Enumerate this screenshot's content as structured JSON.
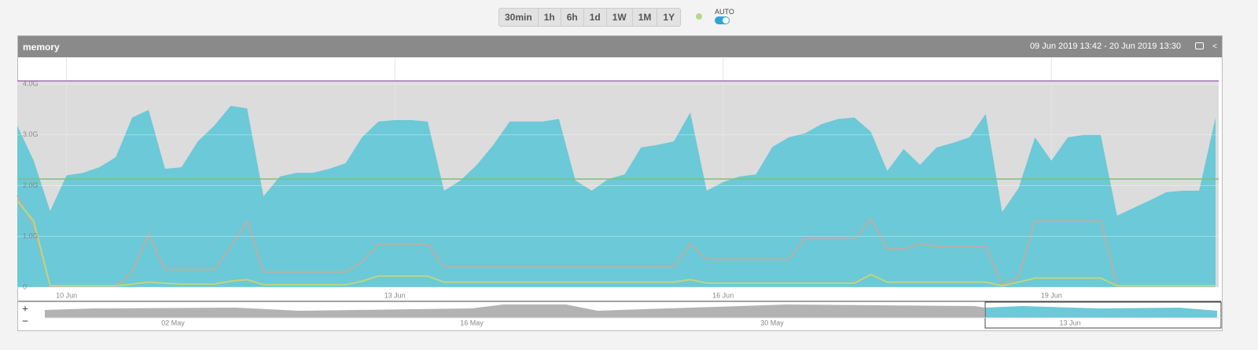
{
  "toolbar": {
    "buttons": [
      "30min",
      "1h",
      "6h",
      "1d",
      "1W",
      "1M",
      "1Y"
    ],
    "auto_label": "AUTO"
  },
  "panel": {
    "title": "memory",
    "range": "09 Jun 2019 13:42 - 20 Jun 2019 13:30"
  },
  "chart_data": {
    "type": "area",
    "categories": [
      null,
      null,
      null,
      "10 Jun",
      null,
      null,
      null,
      null,
      null,
      null,
      null,
      null,
      null,
      null,
      null,
      null,
      null,
      null,
      null,
      null,
      null,
      null,
      null,
      "13 Jun",
      null,
      null,
      null,
      null,
      null,
      null,
      null,
      null,
      null,
      null,
      null,
      null,
      null,
      null,
      null,
      null,
      null,
      null,
      null,
      "16 Jun",
      null,
      null,
      null,
      null,
      null,
      null,
      null,
      null,
      null,
      null,
      null,
      null,
      null,
      null,
      null,
      null,
      null,
      null,
      null,
      "19 Jun",
      null,
      null,
      null,
      null,
      null,
      null,
      null,
      null,
      null,
      null
    ],
    "series": [
      {
        "type": "area",
        "color": "#6cc9d7",
        "values": [
          3.18,
          2.49,
          1.5,
          2.2,
          2.25,
          2.36,
          2.56,
          3.34,
          3.49,
          2.33,
          2.36,
          2.87,
          3.18,
          3.57,
          3.52,
          1.79,
          2.18,
          2.25,
          2.25,
          2.33,
          2.44,
          2.95,
          3.26,
          3.29,
          3.29,
          3.26,
          1.9,
          2.1,
          2.41,
          2.8,
          3.26,
          3.26,
          3.26,
          3.31,
          2.1,
          1.9,
          2.13,
          2.22,
          2.75,
          2.8,
          2.87,
          3.44,
          1.9,
          2.07,
          2.18,
          2.22,
          2.76,
          2.95,
          3.03,
          3.21,
          3.31,
          3.34,
          3.06,
          2.29,
          2.72,
          2.41,
          2.75,
          2.84,
          2.95,
          3.41,
          1.48,
          1.95,
          2.95,
          2.49,
          2.95,
          3.0,
          3.0,
          1.41,
          1.56,
          1.71,
          1.87,
          1.9,
          1.9,
          3.34
        ]
      },
      {
        "type": "line",
        "color": "#b9b0a6",
        "values": [
          1.8,
          1.2,
          0.02,
          0.02,
          0.02,
          0.02,
          0.02,
          0.3,
          1.05,
          0.35,
          0.35,
          0.35,
          0.35,
          0.8,
          1.3,
          0.3,
          0.3,
          0.3,
          0.3,
          0.3,
          0.3,
          0.5,
          0.85,
          0.85,
          0.85,
          0.85,
          0.4,
          0.4,
          0.4,
          0.4,
          0.4,
          0.4,
          0.4,
          0.4,
          0.4,
          0.4,
          0.4,
          0.4,
          0.4,
          0.4,
          0.4,
          0.85,
          0.55,
          0.55,
          0.55,
          0.55,
          0.55,
          0.55,
          0.95,
          0.95,
          0.95,
          0.95,
          1.35,
          0.75,
          0.75,
          0.85,
          0.8,
          0.8,
          0.8,
          0.8,
          0.05,
          0.2,
          1.3,
          1.3,
          1.3,
          1.3,
          1.3,
          0.02,
          0.02,
          0.02,
          0.02,
          0.02,
          0.02,
          0.02
        ]
      },
      {
        "type": "line",
        "color": "#bcd77e",
        "values": [
          1.7,
          1.3,
          0.03,
          0.03,
          0.03,
          0.03,
          0.03,
          0.06,
          0.1,
          0.08,
          0.06,
          0.06,
          0.06,
          0.12,
          0.15,
          0.05,
          0.05,
          0.05,
          0.05,
          0.05,
          0.05,
          0.12,
          0.22,
          0.22,
          0.22,
          0.22,
          0.1,
          0.1,
          0.1,
          0.1,
          0.1,
          0.1,
          0.1,
          0.1,
          0.1,
          0.1,
          0.1,
          0.1,
          0.1,
          0.1,
          0.1,
          0.15,
          0.08,
          0.08,
          0.08,
          0.08,
          0.08,
          0.08,
          0.08,
          0.08,
          0.08,
          0.08,
          0.25,
          0.1,
          0.1,
          0.1,
          0.1,
          0.1,
          0.1,
          0.1,
          0.03,
          0.1,
          0.18,
          0.18,
          0.18,
          0.18,
          0.18,
          0.03,
          0.03,
          0.03,
          0.03,
          0.03,
          0.03,
          0.03
        ]
      }
    ],
    "hlines": [
      {
        "value": 4.06,
        "color": "#a070b0",
        "shade": "#dcdcdc"
      },
      {
        "value": 2.13,
        "color": "#7cc07c"
      }
    ],
    "ylim": [
      0,
      4.5
    ],
    "yticks": [
      0,
      {
        "value": 1,
        "label": "1.0G"
      },
      {
        "value": 2,
        "label": "2.0G"
      },
      {
        "value": 3,
        "label": "3.0G"
      },
      {
        "value": 4,
        "label": "4.0G"
      }
    ],
    "grid": true
  },
  "navigator": {
    "labels": [
      "02 May",
      "16 May",
      "30 May",
      "13 Jun"
    ],
    "zoom_in": "+",
    "zoom_out": "−"
  }
}
